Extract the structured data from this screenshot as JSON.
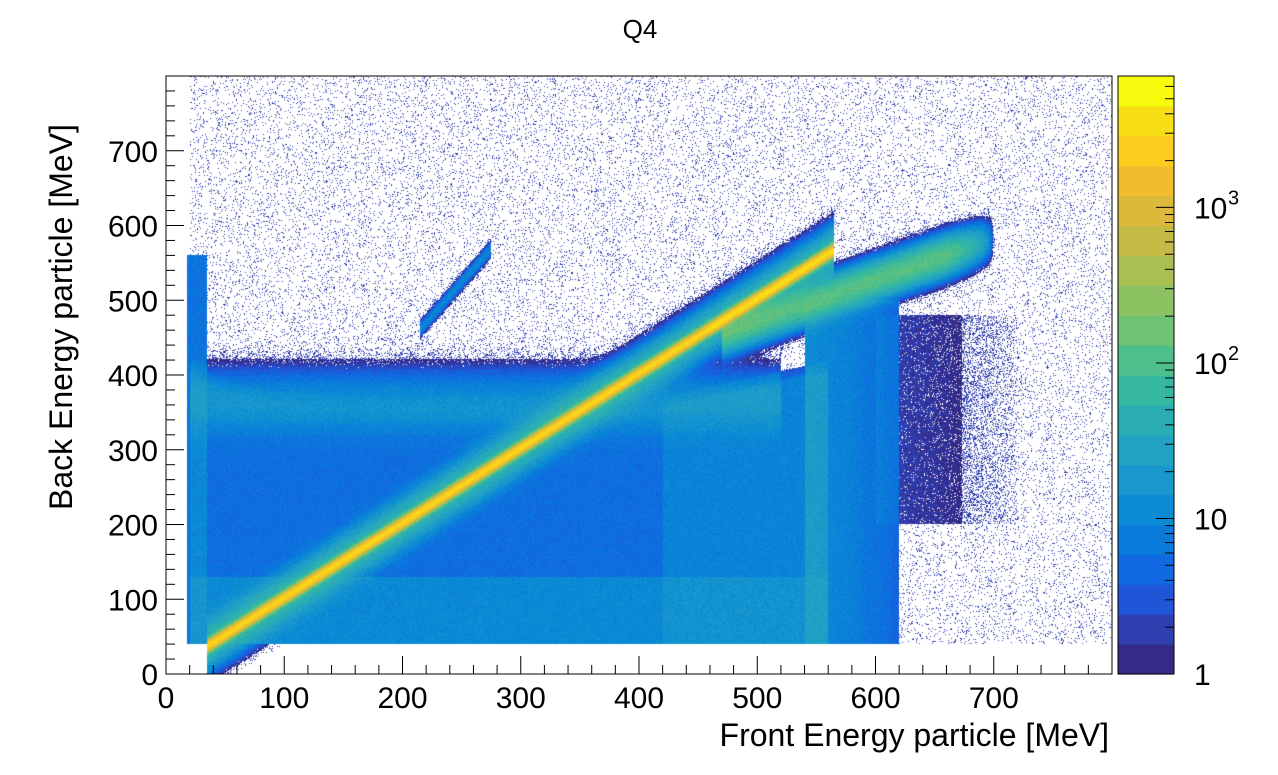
{
  "chart_data": {
    "type": "heatmap",
    "title": "Q4",
    "xlabel": "Front Energy particle [MeV]",
    "ylabel": "Back Energy particle [MeV]",
    "xlim": [
      0,
      800
    ],
    "ylim": [
      0,
      800
    ],
    "x_ticks": [
      0,
      100,
      200,
      300,
      400,
      500,
      600,
      700
    ],
    "y_ticks": [
      0,
      100,
      200,
      300,
      400,
      500,
      600,
      700
    ],
    "colorbar": {
      "scale": "log",
      "range": [
        1,
        7000
      ],
      "tick_labels": [
        {
          "value": 1,
          "label": "1"
        },
        {
          "value": 10,
          "label": "10"
        },
        {
          "value": 100,
          "label": "10",
          "exponent": "2"
        },
        {
          "value": 1000,
          "label": "10",
          "exponent": "3"
        }
      ],
      "colors": [
        "#352a87",
        "#2f3fb0",
        "#1f55d6",
        "#1069e0",
        "#0a7bdb",
        "#0b8bd4",
        "#1898cc",
        "#22a3c3",
        "#2aadb5",
        "#36b7a2",
        "#4dbf8b",
        "#6ec274",
        "#8cc262",
        "#a8bf52",
        "#c4bb45",
        "#dcb93a",
        "#f0bd2e",
        "#fbcb1e",
        "#f8de14",
        "#f9fb0e"
      ]
    },
    "features": [
      {
        "name": "diagonal band",
        "x_range": [
          35,
          560
        ],
        "slope": 1.0,
        "peak_counts": 3000
      },
      {
        "name": "upper branch",
        "x_range": [
          480,
          700
        ],
        "y_range": [
          500,
          590
        ]
      },
      {
        "name": "horizontal band",
        "x_range": [
          20,
          400
        ],
        "y_range": [
          350,
          400
        ]
      },
      {
        "name": "small diagonal streak",
        "x_range": [
          220,
          270
        ],
        "y_range": [
          460,
          560
        ]
      },
      {
        "name": "low edge",
        "x_range": [
          20,
          560
        ],
        "y": 40
      }
    ]
  }
}
